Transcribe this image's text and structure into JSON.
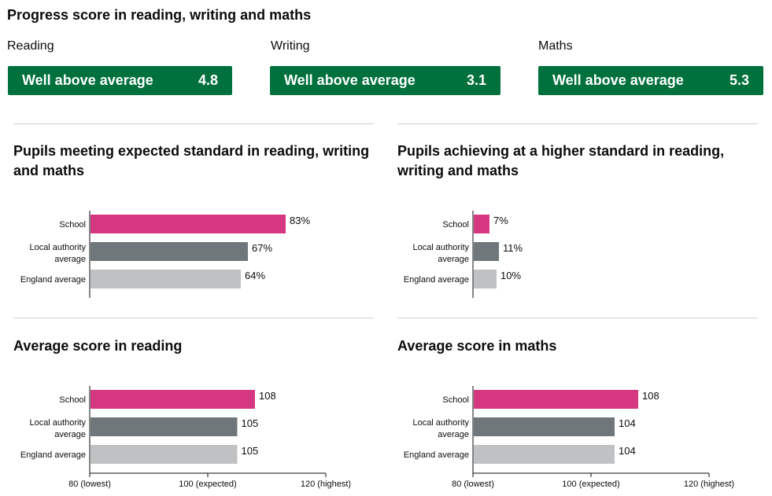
{
  "page_title": "Progress score in reading, writing and maths",
  "progress": [
    {
      "subject": "Reading",
      "band": "Well above average",
      "score": "4.8"
    },
    {
      "subject": "Writing",
      "band": "Well above average",
      "score": "3.1"
    },
    {
      "subject": "Maths",
      "band": "Well above average",
      "score": "5.3"
    }
  ],
  "colors": {
    "banner": "#00703c",
    "school": "#d53880",
    "local_authority": "#6f777b",
    "england": "#bfc1c3"
  },
  "chart_data": [
    {
      "type": "bar",
      "title": "Pupils meeting expected standard in reading, writing and maths",
      "categories": [
        "School",
        "Local authority average",
        "England average"
      ],
      "values": [
        83,
        67,
        64
      ],
      "value_labels": [
        "83%",
        "67%",
        "64%"
      ],
      "xlim": [
        0,
        100
      ],
      "ticks": []
    },
    {
      "type": "bar",
      "title": "Pupils achieving at a higher standard in reading, writing and maths",
      "categories": [
        "School",
        "Local authority average",
        "England average"
      ],
      "values": [
        7,
        11,
        10
      ],
      "value_labels": [
        "7%",
        "11%",
        "10%"
      ],
      "xlim": [
        0,
        100
      ],
      "ticks": []
    },
    {
      "type": "bar",
      "title": "Average score in reading",
      "categories": [
        "School",
        "Local authority average",
        "England average"
      ],
      "values": [
        108,
        105,
        105
      ],
      "value_labels": [
        "108",
        "105",
        "105"
      ],
      "xlim": [
        80,
        120
      ],
      "ticks": [
        {
          "value": 80,
          "label": "80 (lowest)"
        },
        {
          "value": 100,
          "label": "100 (expected)"
        },
        {
          "value": 120,
          "label": "120 (highest)"
        }
      ]
    },
    {
      "type": "bar",
      "title": "Average score in maths",
      "categories": [
        "School",
        "Local authority average",
        "England average"
      ],
      "values": [
        108,
        104,
        104
      ],
      "value_labels": [
        "108",
        "104",
        "104"
      ],
      "xlim": [
        80,
        120
      ],
      "ticks": [
        {
          "value": 80,
          "label": "80 (lowest)"
        },
        {
          "value": 100,
          "label": "100 (expected)"
        },
        {
          "value": 120,
          "label": "120 (highest)"
        }
      ]
    }
  ]
}
